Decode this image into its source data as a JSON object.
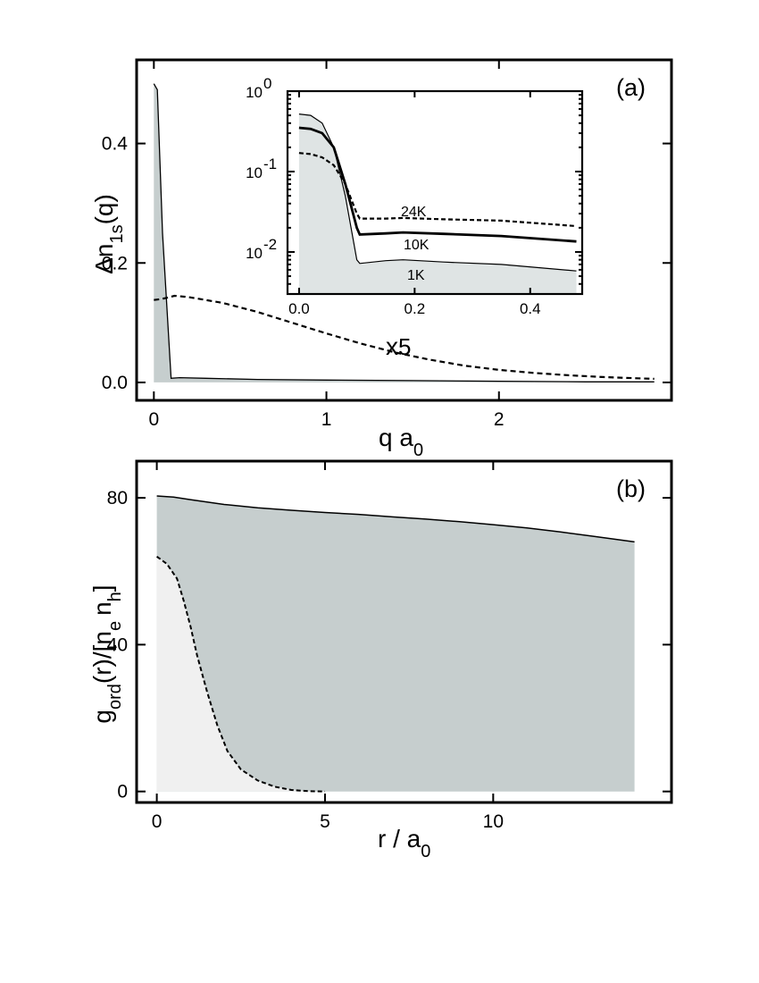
{
  "chart_data": [
    {
      "panel_label": "(a)",
      "type": "line",
      "ylabel": "Δn_{1s}(q)",
      "xlabel": "q a_0",
      "xlim": [
        -0.1,
        3.0
      ],
      "ylim": [
        -0.03,
        0.54
      ],
      "xticks": [
        0,
        1,
        2
      ],
      "yticks": [
        0.0,
        0.2,
        0.4
      ],
      "xtick_labels": [
        "0",
        "1",
        "2"
      ],
      "ytick_labels": [
        "0.0",
        "0.2",
        "0.4"
      ],
      "annotation": "x5",
      "series": [
        {
          "style": "solid-filled",
          "fill": "#c6cece",
          "x": [
            0,
            0.02,
            0.05,
            0.1,
            0.15,
            0.3,
            0.6,
            1.0,
            1.5,
            2.0,
            2.5,
            2.9
          ],
          "y": [
            0.5,
            0.49,
            0.25,
            0.007,
            0.008,
            0.007,
            0.005,
            0.004,
            0.003,
            0.002,
            0.001,
            0.001
          ]
        },
        {
          "style": "dashed",
          "x": [
            0,
            0.05,
            0.12,
            0.2,
            0.4,
            0.6,
            0.8,
            1.0,
            1.2,
            1.4,
            1.6,
            1.8,
            2.0,
            2.2,
            2.4,
            2.6,
            2.8,
            2.9
          ],
          "y": [
            0.138,
            0.14,
            0.145,
            0.143,
            0.133,
            0.118,
            0.1,
            0.082,
            0.065,
            0.05,
            0.038,
            0.028,
            0.021,
            0.016,
            0.012,
            0.009,
            0.007,
            0.006
          ]
        }
      ]
    },
    {
      "type": "line",
      "inset": true,
      "yscale": "log",
      "xlim": [
        -0.02,
        0.49
      ],
      "ylim": [
        0.003,
        1.0
      ],
      "xticks": [
        0.0,
        0.2,
        0.4
      ],
      "xtick_labels": [
        "0.0",
        "0.2",
        "0.4"
      ],
      "ytick_labels": [
        {
          "base": "10",
          "exp": "0",
          "value": 1.0
        },
        {
          "base": "10",
          "exp": "-1",
          "value": 0.1
        },
        {
          "base": "10",
          "exp": "-2",
          "value": 0.01
        }
      ],
      "series": [
        {
          "name": "1K",
          "style": "thin-filled",
          "fill": "#dfe4e4",
          "x": [
            0,
            0.02,
            0.04,
            0.06,
            0.08,
            0.1,
            0.105,
            0.15,
            0.18,
            0.25,
            0.35,
            0.48
          ],
          "y": [
            0.52,
            0.5,
            0.4,
            0.2,
            0.05,
            0.008,
            0.0072,
            0.0078,
            0.008,
            0.0075,
            0.007,
            0.0058
          ]
        },
        {
          "name": "10K",
          "style": "thick",
          "x": [
            0,
            0.02,
            0.04,
            0.06,
            0.08,
            0.1,
            0.105,
            0.15,
            0.18,
            0.25,
            0.35,
            0.48
          ],
          "y": [
            0.35,
            0.34,
            0.3,
            0.2,
            0.07,
            0.02,
            0.0165,
            0.017,
            0.0175,
            0.0168,
            0.0158,
            0.0135
          ]
        },
        {
          "name": "24K",
          "style": "dashed",
          "x": [
            0,
            0.02,
            0.04,
            0.06,
            0.08,
            0.1,
            0.105,
            0.15,
            0.18,
            0.25,
            0.35,
            0.48
          ],
          "y": [
            0.17,
            0.165,
            0.15,
            0.12,
            0.07,
            0.03,
            0.026,
            0.026,
            0.0265,
            0.0255,
            0.0245,
            0.021
          ]
        }
      ]
    },
    {
      "panel_label": "(b)",
      "type": "area",
      "ylabel": "g_{ord}(r)/[n_e n_h]",
      "xlabel": "r / a_0",
      "xlim": [
        -0.6,
        15.3
      ],
      "ylim": [
        -3,
        90
      ],
      "xticks": [
        0,
        5,
        10
      ],
      "yticks": [
        0,
        40,
        80
      ],
      "xtick_labels": [
        "0",
        "5",
        "10"
      ],
      "ytick_labels": [
        "0",
        "40",
        "80"
      ],
      "series": [
        {
          "style": "solid-filled",
          "fill": "#c6cece",
          "x": [
            0,
            0.5,
            1,
            2,
            3,
            4,
            5,
            6,
            7,
            8,
            9,
            10,
            11,
            12,
            13,
            14.2
          ],
          "y": [
            80.5,
            80.2,
            79.5,
            78.2,
            77.3,
            76.6,
            76,
            75.5,
            74.8,
            74.2,
            73.5,
            72.7,
            71.8,
            70.7,
            69.5,
            68
          ]
        },
        {
          "style": "dashed-filled",
          "fill": "#f0f0f0",
          "x": [
            0,
            0.3,
            0.6,
            0.8,
            1.0,
            1.2,
            1.5,
            1.8,
            2.1,
            2.5,
            3.0,
            3.5,
            4.0,
            4.5,
            5.0
          ],
          "y": [
            64,
            62,
            58,
            52,
            45,
            37,
            27,
            18,
            11,
            6,
            3,
            1.3,
            0.4,
            0.1,
            0
          ]
        }
      ]
    }
  ]
}
